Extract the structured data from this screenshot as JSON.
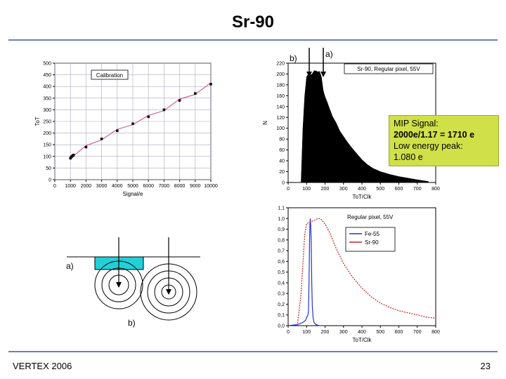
{
  "slide": {
    "title": "Sr-90",
    "footer_left": "VERTEX 2006",
    "page_number": "23"
  },
  "labels": {
    "a_top": "a)",
    "b_top": "b)",
    "a_sketch": "a)",
    "b_sketch": "b)"
  },
  "mip_box": {
    "line1": "MIP Signal:",
    "line2": "2000e/1.17 = 1710 e",
    "line3": "Low energy peak:",
    "line4": "1.080 e",
    "color": "#d0e048"
  },
  "chart_data": [
    {
      "type": "scatter",
      "title": "",
      "legend": "Calibration",
      "xlabel": "Signal/e",
      "ylabel": "ToT",
      "xlim": [
        0,
        10000
      ],
      "ylim": [
        0,
        500
      ],
      "xticks": [
        "0",
        "1000",
        "2000",
        "3000",
        "4000",
        "5000",
        "6000",
        "7000",
        "8000",
        "9000",
        "10000"
      ],
      "yticks": [
        "0",
        "50",
        "100",
        "150",
        "200",
        "250",
        "300",
        "350",
        "400",
        "450",
        "500"
      ],
      "points": [
        [
          1000,
          92
        ],
        [
          1050,
          97
        ],
        [
          1100,
          100
        ],
        [
          1150,
          103
        ],
        [
          1200,
          106
        ],
        [
          2000,
          140
        ],
        [
          3000,
          175
        ],
        [
          4000,
          210
        ],
        [
          5000,
          240
        ],
        [
          6000,
          270
        ],
        [
          7000,
          300
        ],
        [
          8000,
          340
        ],
        [
          9000,
          370
        ],
        [
          10000,
          410
        ]
      ],
      "fit_color": "#cc4488",
      "point_color": "#111111"
    },
    {
      "type": "area",
      "title": "",
      "legend": "Sr-90, Regular pixel, 55V",
      "xlabel": "ToT/Clk",
      "ylabel": "N",
      "xlim": [
        0,
        800
      ],
      "ylim": [
        0,
        220
      ],
      "xticks": [
        "0",
        "100",
        "200",
        "300",
        "400",
        "500",
        "600",
        "700",
        "800"
      ],
      "yticks": [
        "0",
        "20",
        "40",
        "60",
        "80",
        "100",
        "120",
        "140",
        "160",
        "180",
        "200",
        "220"
      ],
      "x": [
        70,
        80,
        90,
        100,
        110,
        120,
        130,
        140,
        150,
        160,
        170,
        180,
        190,
        200,
        210,
        220,
        240,
        260,
        280,
        300,
        320,
        340,
        360,
        380,
        400,
        430,
        460,
        500,
        550,
        600,
        650,
        700,
        760
      ],
      "values": [
        0,
        100,
        160,
        195,
        200,
        198,
        200,
        206,
        206,
        204,
        205,
        195,
        170,
        158,
        150,
        140,
        122,
        110,
        95,
        85,
        75,
        66,
        58,
        50,
        42,
        33,
        26,
        20,
        15,
        11,
        8,
        5,
        2
      ],
      "fill_color": "#000000"
    },
    {
      "type": "line",
      "title": "",
      "legend_title": "Regular pixel, 55V",
      "xlabel": "ToT/Clk",
      "ylabel": "",
      "xlim": [
        0,
        800
      ],
      "ylim": [
        0,
        1.1
      ],
      "xticks": [
        "0",
        "100",
        "200",
        "300",
        "400",
        "500",
        "600",
        "700",
        "800"
      ],
      "yticks": [
        "0,0",
        "0,1",
        "0,2",
        "0,3",
        "0,4",
        "0,5",
        "0,6",
        "0,7",
        "0,8",
        "0,9",
        "1,0",
        "1,1"
      ],
      "series": [
        {
          "name": "Fe-55",
          "color": "#2233cc",
          "x": [
            0,
            50,
            80,
            95,
            100,
            105,
            110,
            113,
            116,
            118,
            120,
            122,
            125,
            128,
            131,
            135,
            140,
            150,
            170,
            200
          ],
          "values": [
            0.0,
            0.01,
            0.03,
            0.05,
            0.08,
            0.09,
            0.12,
            0.4,
            0.8,
            0.95,
            1.0,
            0.95,
            0.8,
            0.4,
            0.18,
            0.08,
            0.03,
            0.01,
            0.0,
            0.0
          ]
        },
        {
          "name": "Sr-90",
          "color": "#cc2222",
          "x": [
            50,
            70,
            90,
            100,
            120,
            140,
            160,
            170,
            180,
            200,
            230,
            260,
            300,
            350,
            400,
            450,
            500,
            550,
            600,
            650,
            700,
            750,
            800
          ],
          "values": [
            0.0,
            0.3,
            0.85,
            0.95,
            0.97,
            0.98,
            1.0,
            1.0,
            0.99,
            0.95,
            0.85,
            0.72,
            0.58,
            0.45,
            0.35,
            0.27,
            0.21,
            0.17,
            0.14,
            0.12,
            0.1,
            0.08,
            0.07
          ]
        }
      ]
    }
  ]
}
